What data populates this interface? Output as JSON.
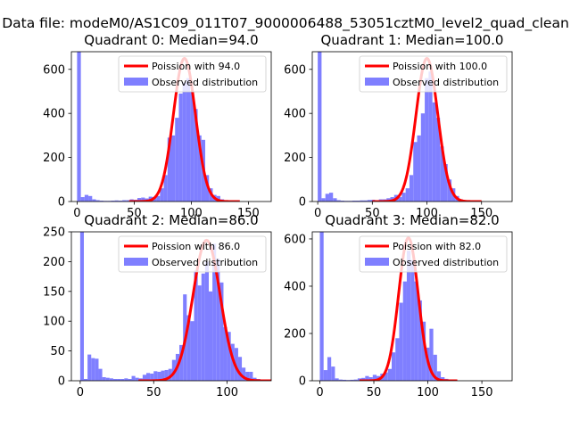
{
  "suptitle": "Data file: modeM0/AS1C09_011T07_9000006488_53051cztM0_level2_quad_clean",
  "colors": {
    "observed": "#7f7fff",
    "poisson": "#ff0000",
    "axis": "#000000",
    "legend_border": "#cccccc"
  },
  "chart_data": [
    {
      "type": "bar",
      "title": "Quadrant 0: Median=94.0",
      "median": 94.0,
      "legend": [
        "Poission with 94.0",
        "Observed distribution"
      ],
      "xlim": [
        -5,
        170
      ],
      "ylim": [
        0,
        680
      ],
      "xticks": [
        0,
        50,
        100,
        150
      ],
      "yticks": [
        0,
        200,
        400,
        600
      ],
      "curve_peak": 650,
      "bin_width": 3.3,
      "bins": [
        {
          "x": 0,
          "y": 680
        },
        {
          "x": 3.3,
          "y": 20
        },
        {
          "x": 6.6,
          "y": 30
        },
        {
          "x": 9.9,
          "y": 25
        },
        {
          "x": 13.2,
          "y": 10
        },
        {
          "x": 16.5,
          "y": 6
        },
        {
          "x": 19.8,
          "y": 4
        },
        {
          "x": 23.1,
          "y": 3
        },
        {
          "x": 26.4,
          "y": 3
        },
        {
          "x": 29.7,
          "y": 4
        },
        {
          "x": 33,
          "y": 5
        },
        {
          "x": 36.3,
          "y": 4
        },
        {
          "x": 39.6,
          "y": 6
        },
        {
          "x": 42.9,
          "y": 6
        },
        {
          "x": 46.2,
          "y": 10
        },
        {
          "x": 49.5,
          "y": 8
        },
        {
          "x": 52.8,
          "y": 16
        },
        {
          "x": 56.1,
          "y": 18
        },
        {
          "x": 59.4,
          "y": 14
        },
        {
          "x": 62.7,
          "y": 22
        },
        {
          "x": 66,
          "y": 20
        },
        {
          "x": 69.3,
          "y": 25
        },
        {
          "x": 72.6,
          "y": 60
        },
        {
          "x": 75.9,
          "y": 120
        },
        {
          "x": 79.2,
          "y": 290
        },
        {
          "x": 82.5,
          "y": 300
        },
        {
          "x": 85.8,
          "y": 380
        },
        {
          "x": 89.1,
          "y": 490
        },
        {
          "x": 92.4,
          "y": 540
        },
        {
          "x": 95.7,
          "y": 560
        },
        {
          "x": 99,
          "y": 500
        },
        {
          "x": 102.3,
          "y": 420
        },
        {
          "x": 105.6,
          "y": 300
        },
        {
          "x": 108.9,
          "y": 280
        },
        {
          "x": 112.2,
          "y": 120
        },
        {
          "x": 115.5,
          "y": 60
        },
        {
          "x": 118.8,
          "y": 30
        },
        {
          "x": 122.1,
          "y": 25
        },
        {
          "x": 125.4,
          "y": 10
        },
        {
          "x": 128.7,
          "y": 5
        },
        {
          "x": 132,
          "y": 4
        },
        {
          "x": 135.3,
          "y": 3
        }
      ]
    },
    {
      "type": "bar",
      "title": "Quadrant 1: Median=100.0",
      "median": 100.0,
      "legend": [
        "Poission with 100.0",
        "Observed distribution"
      ],
      "xlim": [
        -5,
        178
      ],
      "ylim": [
        0,
        680
      ],
      "xticks": [
        0,
        50,
        100,
        150
      ],
      "yticks": [
        0,
        200,
        400,
        600
      ],
      "curve_peak": 650,
      "bin_width": 3.5,
      "bins": [
        {
          "x": 0,
          "y": 680
        },
        {
          "x": 3.5,
          "y": 15
        },
        {
          "x": 7,
          "y": 35
        },
        {
          "x": 10.5,
          "y": 40
        },
        {
          "x": 14,
          "y": 15
        },
        {
          "x": 17.5,
          "y": 6
        },
        {
          "x": 21,
          "y": 4
        },
        {
          "x": 24.5,
          "y": 3
        },
        {
          "x": 28,
          "y": 3
        },
        {
          "x": 31.5,
          "y": 4
        },
        {
          "x": 35,
          "y": 4
        },
        {
          "x": 38.5,
          "y": 5
        },
        {
          "x": 42,
          "y": 5
        },
        {
          "x": 45.5,
          "y": 7
        },
        {
          "x": 49,
          "y": 8
        },
        {
          "x": 52.5,
          "y": 6
        },
        {
          "x": 56,
          "y": 10
        },
        {
          "x": 59.5,
          "y": 10
        },
        {
          "x": 63,
          "y": 15
        },
        {
          "x": 66.5,
          "y": 20
        },
        {
          "x": 70,
          "y": 30
        },
        {
          "x": 73.5,
          "y": 20
        },
        {
          "x": 77,
          "y": 40
        },
        {
          "x": 80.5,
          "y": 60
        },
        {
          "x": 84,
          "y": 120
        },
        {
          "x": 87.5,
          "y": 270
        },
        {
          "x": 91,
          "y": 300
        },
        {
          "x": 94.5,
          "y": 400
        },
        {
          "x": 98,
          "y": 560
        },
        {
          "x": 101.5,
          "y": 590
        },
        {
          "x": 105,
          "y": 450
        },
        {
          "x": 108.5,
          "y": 380
        },
        {
          "x": 112,
          "y": 250
        },
        {
          "x": 115.5,
          "y": 170
        },
        {
          "x": 119,
          "y": 100
        },
        {
          "x": 122.5,
          "y": 60
        },
        {
          "x": 126,
          "y": 25
        },
        {
          "x": 129.5,
          "y": 10
        },
        {
          "x": 133,
          "y": 5
        },
        {
          "x": 136.5,
          "y": 3
        }
      ]
    },
    {
      "type": "bar",
      "title": "Quadrant 2: Median=86.0",
      "median": 86.0,
      "legend": [
        "Poission with 86.0",
        "Observed distribution"
      ],
      "xlim": [
        -6,
        130
      ],
      "ylim": [
        0,
        250
      ],
      "xticks": [
        0,
        50,
        100
      ],
      "yticks": [
        0,
        50,
        100,
        150,
        200,
        250
      ],
      "curve_peak": 236,
      "bin_width": 2.5,
      "bins": [
        {
          "x": 0,
          "y": 250
        },
        {
          "x": 2.5,
          "y": 3
        },
        {
          "x": 5,
          "y": 44
        },
        {
          "x": 7.5,
          "y": 38
        },
        {
          "x": 10,
          "y": 37
        },
        {
          "x": 12.5,
          "y": 20
        },
        {
          "x": 15,
          "y": 6
        },
        {
          "x": 17.5,
          "y": 5
        },
        {
          "x": 20,
          "y": 4
        },
        {
          "x": 22.5,
          "y": 3
        },
        {
          "x": 25,
          "y": 3
        },
        {
          "x": 27.5,
          "y": 3
        },
        {
          "x": 30,
          "y": 4
        },
        {
          "x": 32.5,
          "y": 3
        },
        {
          "x": 35,
          "y": 8
        },
        {
          "x": 37.5,
          "y": 5
        },
        {
          "x": 40,
          "y": 4
        },
        {
          "x": 42.5,
          "y": 10
        },
        {
          "x": 45,
          "y": 13
        },
        {
          "x": 47.5,
          "y": 12
        },
        {
          "x": 50,
          "y": 16
        },
        {
          "x": 52.5,
          "y": 15
        },
        {
          "x": 55,
          "y": 17
        },
        {
          "x": 57.5,
          "y": 18
        },
        {
          "x": 60,
          "y": 20
        },
        {
          "x": 62.5,
          "y": 35
        },
        {
          "x": 65,
          "y": 45
        },
        {
          "x": 67.5,
          "y": 60
        },
        {
          "x": 70,
          "y": 145
        },
        {
          "x": 72.5,
          "y": 110
        },
        {
          "x": 75,
          "y": 100
        },
        {
          "x": 77.5,
          "y": 185
        },
        {
          "x": 80,
          "y": 160
        },
        {
          "x": 82.5,
          "y": 180
        },
        {
          "x": 85,
          "y": 200
        },
        {
          "x": 87.5,
          "y": 150
        },
        {
          "x": 90,
          "y": 230
        },
        {
          "x": 92.5,
          "y": 205
        },
        {
          "x": 95,
          "y": 165
        },
        {
          "x": 97.5,
          "y": 90
        },
        {
          "x": 100,
          "y": 82
        },
        {
          "x": 102.5,
          "y": 62
        },
        {
          "x": 105,
          "y": 55
        },
        {
          "x": 107.5,
          "y": 40
        },
        {
          "x": 110,
          "y": 22
        },
        {
          "x": 112.5,
          "y": 15
        },
        {
          "x": 115,
          "y": 15
        },
        {
          "x": 117.5,
          "y": 5
        },
        {
          "x": 120,
          "y": 3
        }
      ]
    },
    {
      "type": "bar",
      "title": "Quadrant 3: Median=82.0",
      "median": 82.0,
      "legend": [
        "Poission with 82.0",
        "Observed distribution"
      ],
      "xlim": [
        -7,
        178
      ],
      "ylim": [
        0,
        630
      ],
      "xticks": [
        0,
        50,
        100,
        150
      ],
      "yticks": [
        0,
        200,
        400,
        600
      ],
      "curve_peak": 605,
      "bin_width": 3.5,
      "bins": [
        {
          "x": 0,
          "y": 630
        },
        {
          "x": 3.5,
          "y": 45
        },
        {
          "x": 7,
          "y": 100
        },
        {
          "x": 10.5,
          "y": 60
        },
        {
          "x": 14,
          "y": 10
        },
        {
          "x": 17.5,
          "y": 5
        },
        {
          "x": 21,
          "y": 4
        },
        {
          "x": 24.5,
          "y": 3
        },
        {
          "x": 28,
          "y": 4
        },
        {
          "x": 31.5,
          "y": 5
        },
        {
          "x": 35,
          "y": 10
        },
        {
          "x": 38.5,
          "y": 12
        },
        {
          "x": 42,
          "y": 20
        },
        {
          "x": 45.5,
          "y": 15
        },
        {
          "x": 49,
          "y": 25
        },
        {
          "x": 52.5,
          "y": 20
        },
        {
          "x": 56,
          "y": 30
        },
        {
          "x": 59.5,
          "y": 35
        },
        {
          "x": 63,
          "y": 50
        },
        {
          "x": 66.5,
          "y": 120
        },
        {
          "x": 70,
          "y": 180
        },
        {
          "x": 73.5,
          "y": 330
        },
        {
          "x": 77,
          "y": 420
        },
        {
          "x": 80.5,
          "y": 550
        },
        {
          "x": 84,
          "y": 510
        },
        {
          "x": 87.5,
          "y": 420
        },
        {
          "x": 91,
          "y": 340
        },
        {
          "x": 94.5,
          "y": 250
        },
        {
          "x": 98,
          "y": 140
        },
        {
          "x": 101.5,
          "y": 220
        },
        {
          "x": 105,
          "y": 110
        },
        {
          "x": 108.5,
          "y": 40
        },
        {
          "x": 112,
          "y": 15
        },
        {
          "x": 115.5,
          "y": 8
        },
        {
          "x": 119,
          "y": 4
        }
      ]
    }
  ]
}
